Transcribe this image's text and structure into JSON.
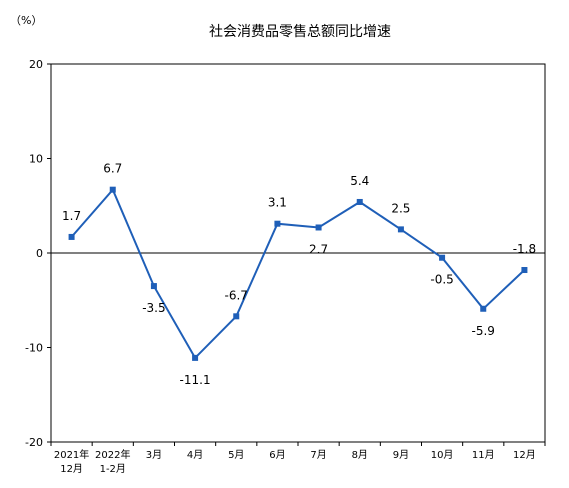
{
  "chart_data": {
    "type": "line",
    "title": "社会消费品零售总额同比增速",
    "unit": "（%）",
    "xlabel": "",
    "ylabel": "",
    "ylim": [
      -20,
      20
    ],
    "yticks": [
      20,
      10,
      0,
      -10,
      -20
    ],
    "grid": false,
    "legend": "none",
    "categories": [
      [
        "2021年",
        "12月"
      ],
      [
        "2022年",
        "1-2月"
      ],
      [
        "3月"
      ],
      [
        "4月"
      ],
      [
        "5月"
      ],
      [
        "6月"
      ],
      [
        "7月"
      ],
      [
        "8月"
      ],
      [
        "9月"
      ],
      [
        "10月"
      ],
      [
        "11月"
      ],
      [
        "12月"
      ]
    ],
    "series": [
      {
        "values": [
          1.7,
          6.7,
          -3.5,
          -11.1,
          -6.7,
          3.1,
          2.7,
          5.4,
          2.5,
          -0.5,
          -5.9,
          -1.8
        ],
        "labels": [
          "1.7",
          "6.7",
          "-3.5",
          "-11.1",
          "-6.7",
          "3.1",
          "2.7",
          "5.4",
          "2.5",
          "-0.5",
          "-5.9",
          "-1.8"
        ],
        "color": "#1f5fb8"
      }
    ]
  }
}
